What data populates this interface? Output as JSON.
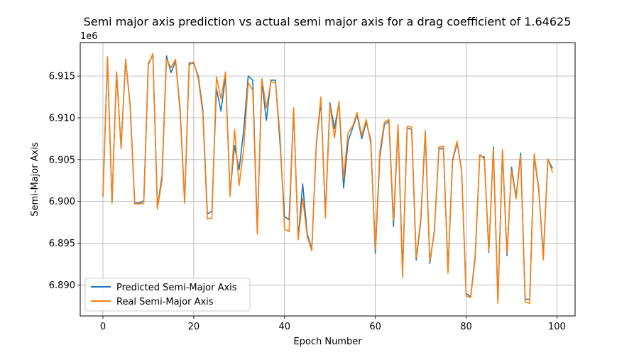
{
  "chart_data": {
    "type": "line",
    "title": "Semi major axis prediction vs actual semi major axis for a drag coefficient of 1.64625",
    "xlabel": "Epoch Number",
    "ylabel": "Semi-Major Axis",
    "y_offset_label": "1e6",
    "xlim": [
      -5,
      104
    ],
    "ylim": [
      6.8863,
      6.919
    ],
    "x_ticks": [
      0,
      20,
      40,
      60,
      80,
      100
    ],
    "y_ticks": [
      6.89,
      6.895,
      6.9,
      6.905,
      6.91,
      6.915
    ],
    "y_tick_labels": [
      "6.890",
      "6.895",
      "6.900",
      "6.905",
      "6.910",
      "6.915"
    ],
    "grid": true,
    "legend_position": "lower-left",
    "x": [
      0,
      1,
      2,
      3,
      4,
      5,
      6,
      7,
      8,
      9,
      10,
      11,
      12,
      13,
      14,
      15,
      16,
      17,
      18,
      19,
      20,
      21,
      22,
      23,
      24,
      25,
      26,
      27,
      28,
      29,
      30,
      31,
      32,
      33,
      34,
      35,
      36,
      37,
      38,
      39,
      40,
      41,
      42,
      43,
      44,
      45,
      46,
      47,
      48,
      49,
      50,
      51,
      52,
      53,
      54,
      55,
      56,
      57,
      58,
      59,
      60,
      61,
      62,
      63,
      64,
      65,
      66,
      67,
      68,
      69,
      70,
      71,
      72,
      73,
      74,
      75,
      76,
      77,
      78,
      79,
      80,
      81,
      82,
      83,
      84,
      85,
      86,
      87,
      88,
      89,
      90,
      91,
      92,
      93,
      94,
      95,
      96,
      97,
      98,
      99
    ],
    "series": [
      {
        "name": "Predicted Semi-Major Axis",
        "color": "#1f77b4",
        "values": [
          6.9006,
          6.9172,
          6.8998,
          6.9155,
          6.9065,
          6.917,
          6.9115,
          6.8998,
          6.8998,
          6.9001,
          6.9165,
          6.9175,
          6.8993,
          6.903,
          6.9174,
          6.9154,
          6.9168,
          6.911,
          6.8999,
          6.9166,
          6.9165,
          6.915,
          6.911,
          6.8985,
          6.8988,
          6.9135,
          6.9108,
          6.915,
          6.901,
          6.9067,
          6.9038,
          6.9085,
          6.915,
          6.9145,
          6.8964,
          6.9143,
          6.9097,
          6.9145,
          6.9145,
          6.907,
          6.8982,
          6.8978,
          6.911,
          6.8956,
          6.9021,
          6.8961,
          6.8943,
          6.9068,
          6.912,
          6.8985,
          6.9118,
          6.9087,
          6.9118,
          6.9016,
          6.9072,
          6.9088,
          6.9104,
          6.9075,
          6.9095,
          6.9073,
          6.8938,
          6.9054,
          6.9092,
          6.9096,
          6.897,
          6.909,
          6.8915,
          6.9088,
          6.9086,
          6.893,
          6.8975,
          6.9082,
          6.8926,
          6.8965,
          6.9063,
          6.9063,
          6.8918,
          6.9048,
          6.907,
          6.9038,
          6.889,
          6.8886,
          6.8935,
          6.9055,
          6.9053,
          6.8939,
          6.9065,
          6.8881,
          6.906,
          6.8935,
          6.9041,
          6.9005,
          6.9058,
          6.8883,
          6.8883,
          6.9055,
          6.9013,
          6.8935,
          6.905,
          6.904
        ]
      },
      {
        "name": "Real Semi-Major Axis",
        "color": "#ff7f0e",
        "values": [
          6.9006,
          6.9173,
          6.8998,
          6.9155,
          6.9063,
          6.917,
          6.9113,
          6.8997,
          6.8997,
          6.8998,
          6.9163,
          6.9177,
          6.8991,
          6.9025,
          6.917,
          6.916,
          6.917,
          6.9105,
          6.8998,
          6.9163,
          6.9167,
          6.9147,
          6.9105,
          6.8979,
          6.898,
          6.9149,
          6.9123,
          6.9155,
          6.9006,
          6.9086,
          6.9019,
          6.9063,
          6.9142,
          6.9133,
          6.8961,
          6.9147,
          6.9112,
          6.9143,
          6.9142,
          6.908,
          6.8967,
          6.8964,
          6.9112,
          6.8954,
          6.9004,
          6.8958,
          6.8941,
          6.907,
          6.9125,
          6.898,
          6.9115,
          6.9076,
          6.912,
          6.9028,
          6.9082,
          6.909,
          6.9106,
          6.9079,
          6.9098,
          6.9069,
          6.8943,
          6.906,
          6.9095,
          6.9098,
          6.8977,
          6.9092,
          6.8909,
          6.909,
          6.9089,
          6.8933,
          6.8978,
          6.9085,
          6.8929,
          6.8963,
          6.9065,
          6.9066,
          6.8914,
          6.905,
          6.9072,
          6.9036,
          6.8887,
          6.8885,
          6.8932,
          6.9056,
          6.9051,
          6.8941,
          6.9063,
          6.8878,
          6.9062,
          6.8938,
          6.9037,
          6.9003,
          6.9055,
          6.888,
          6.8878,
          6.9057,
          6.9016,
          6.893,
          6.9051,
          6.9035
        ]
      }
    ]
  }
}
